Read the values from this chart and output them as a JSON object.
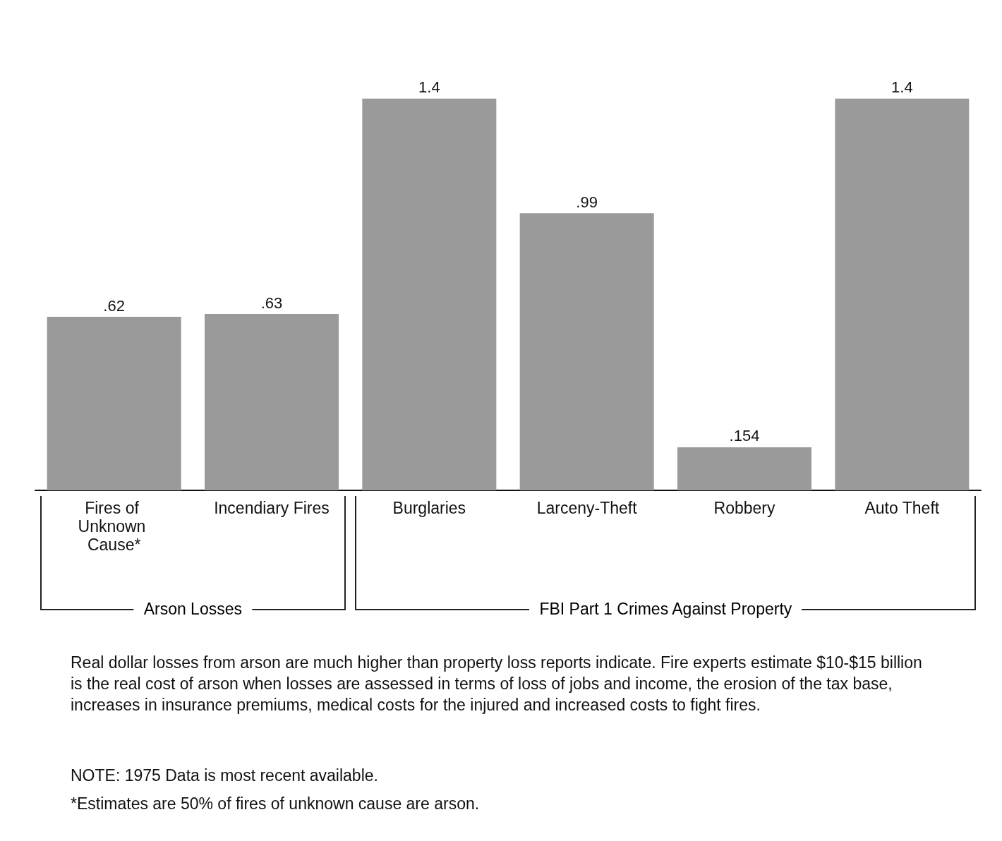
{
  "chart_data": {
    "type": "bar",
    "categories": [
      "Fires of Unknown Cause*",
      "Incendiary Fires",
      "Burglaries",
      "Larceny-Theft",
      "Robbery",
      "Auto Theft"
    ],
    "values": [
      0.62,
      0.63,
      1.4,
      0.99,
      0.154,
      1.4
    ],
    "value_labels": [
      ".62",
      ".63",
      "1.4",
      ".99",
      ".154",
      "1.4"
    ],
    "color": "#9a9a9a",
    "annotations": [
      "Arson Losses",
      "FBI Part 1 Crimes Against Property",
      "Real dollar losses from arson are much higher than property loss reports indicate. Fire experts estimate $10-$15 billion is the real cost of arson when losses are assessed in terms of loss of jobs and income, the erosion of the tax base, increases in insurance premiums, medical costs for the injured and increased costs to fight fires.",
      "NOTE: 1975 Data is most recent available.",
      "*Estimates are 50% of fires of unknown cause are arson."
    ]
  }
}
